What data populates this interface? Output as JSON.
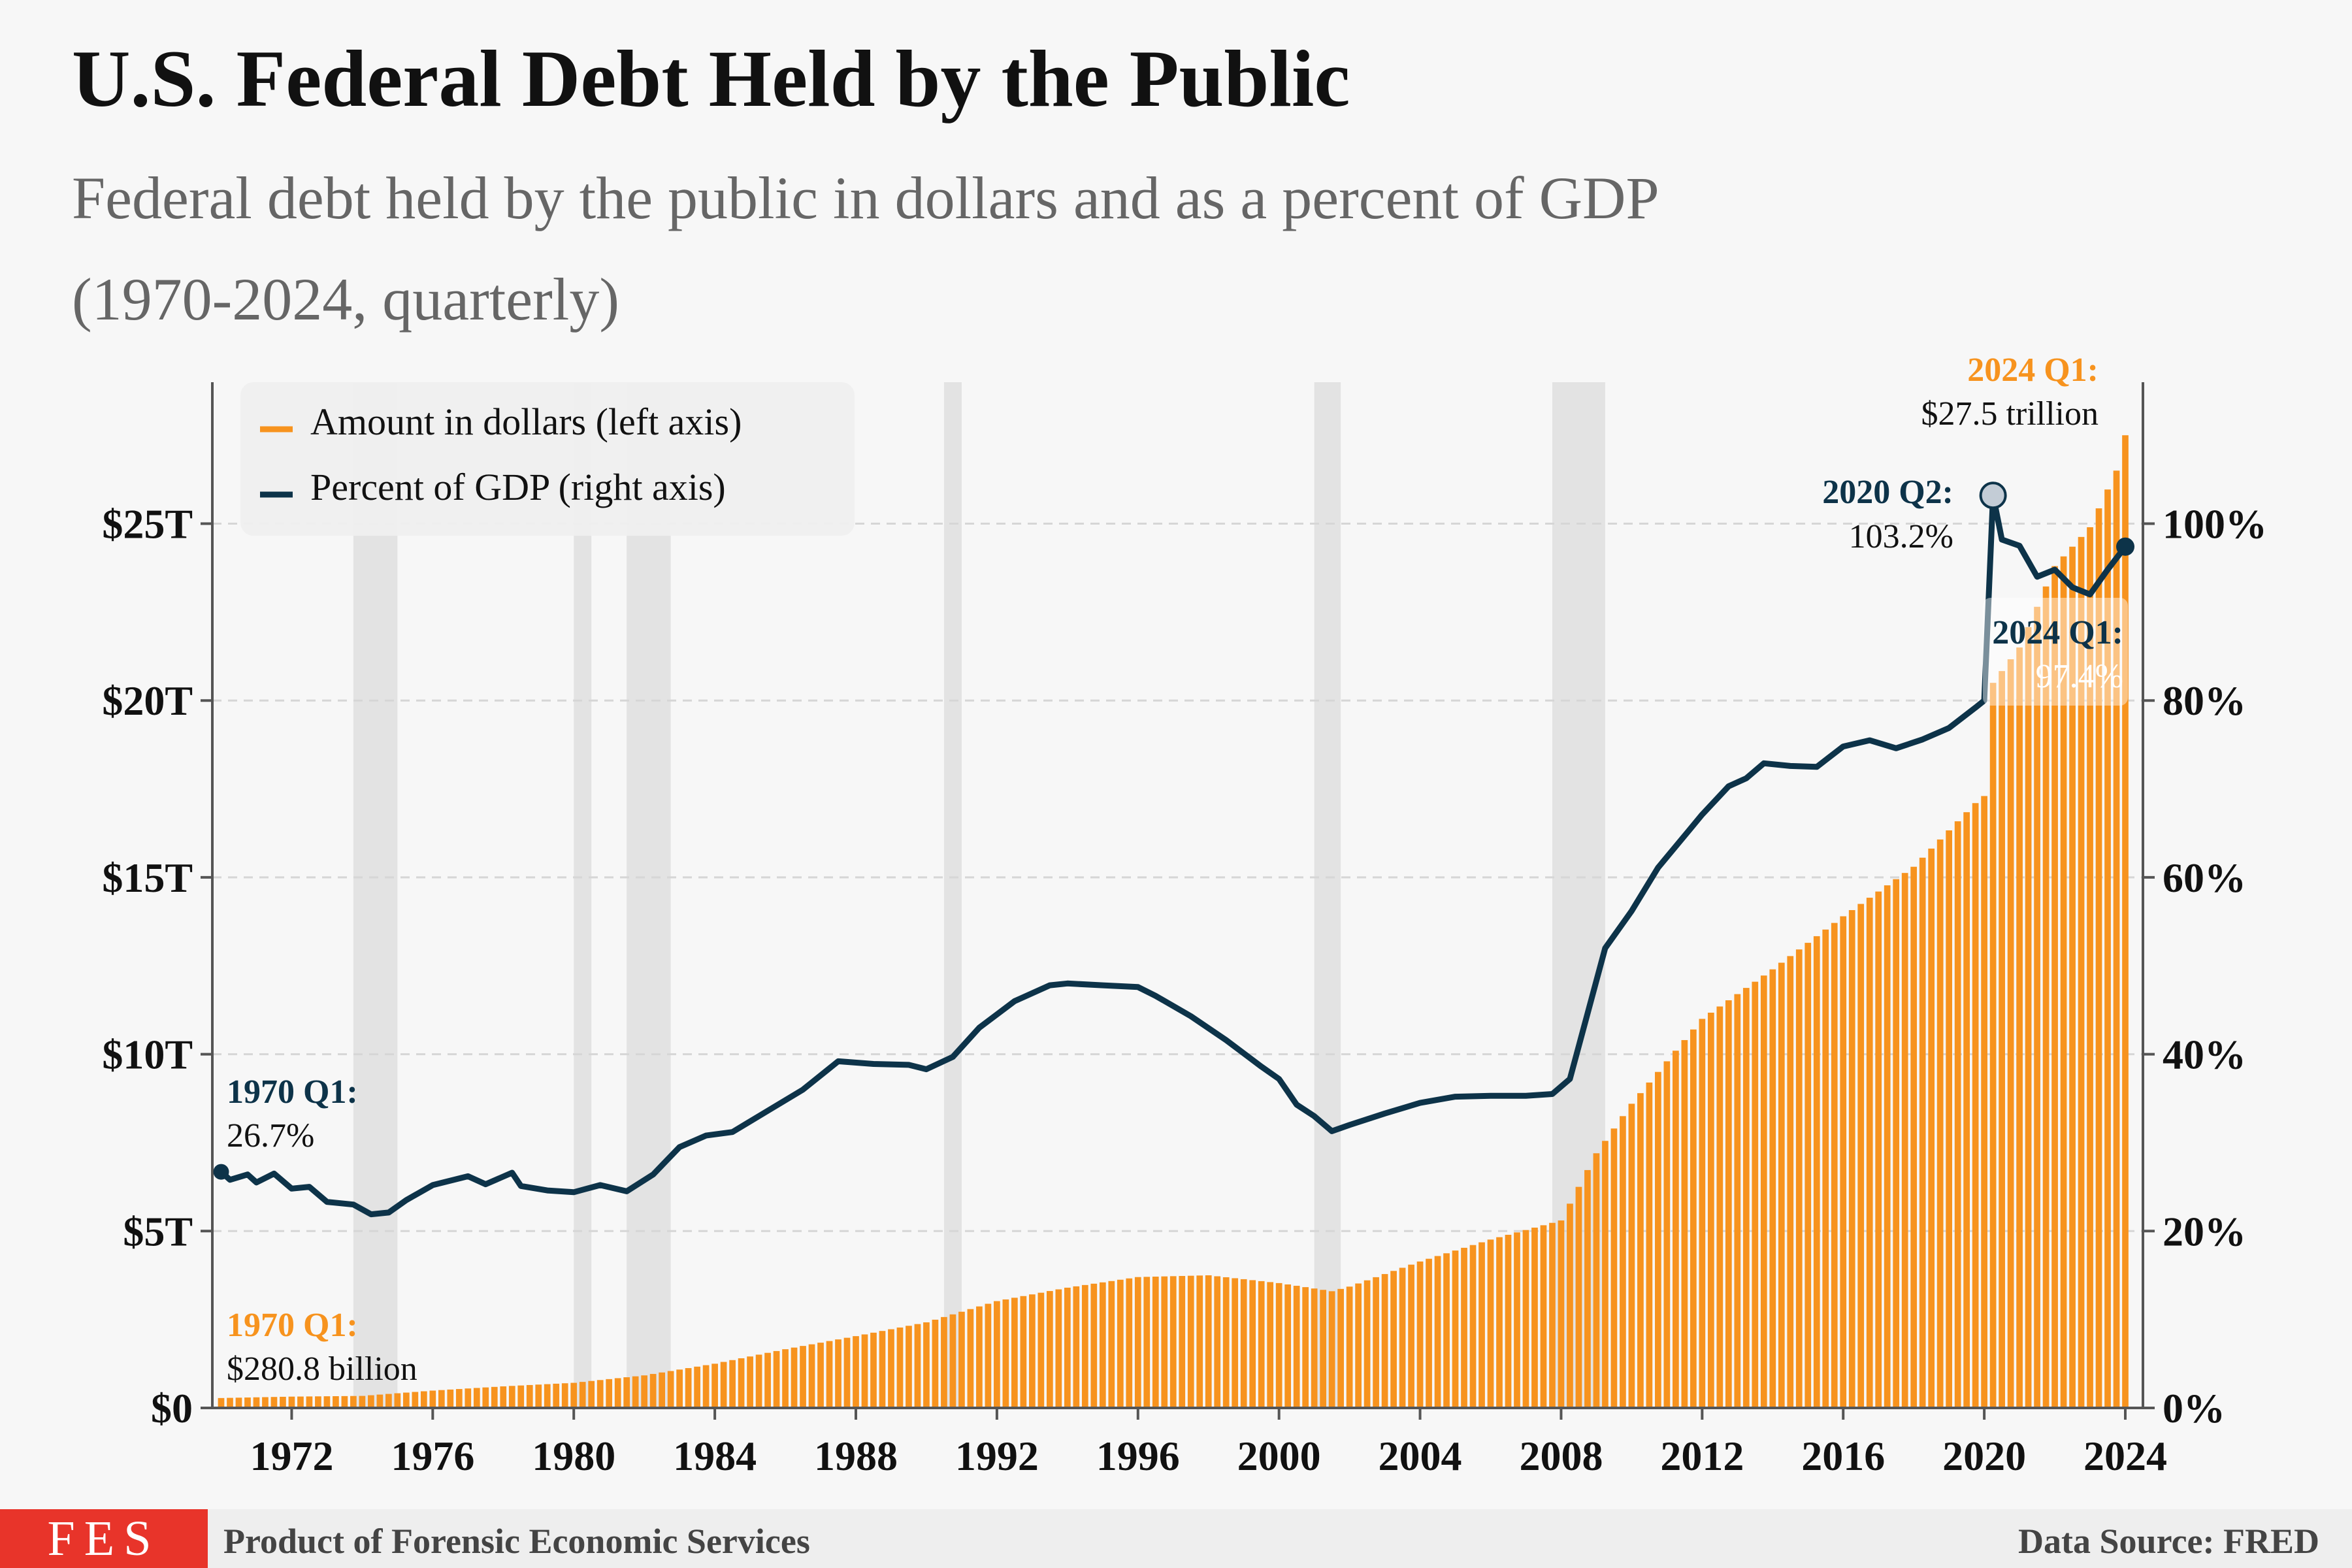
{
  "title": "U.S. Federal Debt Held by the Public",
  "subtitle_line1": "Federal debt held by the public in dollars and as a percent of GDP",
  "subtitle_line2": "(1970-2024, quarterly)",
  "footer": {
    "logo": "FES",
    "credit": "Product of Forensic Economic Services",
    "source": "Data Source: FRED"
  },
  "colors": {
    "bars": "#f7931e",
    "line": "#0d3349",
    "recession": "#e3e3e3",
    "logo_bg": "#e8342a"
  },
  "chart_data": {
    "type": "bar+line",
    "x_range": [
      1969.75,
      2024.5
    ],
    "x_ticks": [
      "1972",
      "1976",
      "1980",
      "1984",
      "1988",
      "1992",
      "1996",
      "2000",
      "2004",
      "2008",
      "2012",
      "2016",
      "2020",
      "2024"
    ],
    "left_axis": {
      "ticks": [
        "$0",
        "$5T",
        "$10T",
        "$15T",
        "$20T",
        "$25T"
      ],
      "tick_values": [
        0,
        5,
        10,
        15,
        20,
        25
      ],
      "range": [
        0,
        29
      ],
      "units": "trillions of dollars"
    },
    "right_axis": {
      "ticks": [
        "0%",
        "20%",
        "40%",
        "60%",
        "80%",
        "100%"
      ],
      "tick_values": [
        0,
        20,
        40,
        60,
        80,
        100
      ],
      "range": [
        0,
        116
      ]
    },
    "grid": "horizontal dashed",
    "recessions": [
      [
        1973.75,
        1975.0
      ],
      [
        1980.0,
        1980.5
      ],
      [
        1981.5,
        1982.75
      ],
      [
        1990.5,
        1991.0
      ],
      [
        2001.0,
        2001.75
      ],
      [
        2007.75,
        2009.25
      ]
    ],
    "legend": {
      "position": "top-left",
      "items": [
        "Amount in dollars (left axis)",
        "Percent of GDP (right axis)"
      ]
    },
    "series": [
      {
        "name": "Amount in dollars (left axis)",
        "kind": "bar",
        "axis": "left",
        "points": [
          [
            1970,
            0.28
          ],
          [
            1972,
            0.32
          ],
          [
            1974,
            0.34
          ],
          [
            1976,
            0.49
          ],
          [
            1978,
            0.61
          ],
          [
            1980,
            0.71
          ],
          [
            1982,
            0.92
          ],
          [
            1984,
            1.25
          ],
          [
            1986,
            1.66
          ],
          [
            1988,
            2.03
          ],
          [
            1990,
            2.42
          ],
          [
            1992,
            3.02
          ],
          [
            1994,
            3.4
          ],
          [
            1996,
            3.7
          ],
          [
            1998,
            3.75
          ],
          [
            2000,
            3.53
          ],
          [
            2001.5,
            3.3
          ],
          [
            2002,
            3.43
          ],
          [
            2004,
            4.14
          ],
          [
            2006,
            4.76
          ],
          [
            2008,
            5.3
          ],
          [
            2009,
            7.2
          ],
          [
            2010,
            8.6
          ],
          [
            2012,
            11.0
          ],
          [
            2014,
            12.4
          ],
          [
            2016,
            13.9
          ],
          [
            2018,
            15.3
          ],
          [
            2019.75,
            17.1
          ],
          [
            2020,
            17.3
          ],
          [
            2020.25,
            20.5
          ],
          [
            2021,
            21.5
          ],
          [
            2022,
            23.8
          ],
          [
            2023,
            24.9
          ],
          [
            2023.75,
            26.5
          ],
          [
            2024,
            27.5
          ]
        ]
      },
      {
        "name": "Percent of GDP (right axis)",
        "kind": "line",
        "axis": "right",
        "points": [
          [
            1970,
            26.7
          ],
          [
            1970.25,
            25.8
          ],
          [
            1970.75,
            26.4
          ],
          [
            1971,
            25.5
          ],
          [
            1971.5,
            26.5
          ],
          [
            1972,
            24.8
          ],
          [
            1972.5,
            25.0
          ],
          [
            1973,
            23.3
          ],
          [
            1973.75,
            23.0
          ],
          [
            1974.25,
            21.9
          ],
          [
            1974.75,
            22.1
          ],
          [
            1975.25,
            23.5
          ],
          [
            1976,
            25.2
          ],
          [
            1977,
            26.2
          ],
          [
            1977.5,
            25.3
          ],
          [
            1978.25,
            26.6
          ],
          [
            1978.5,
            25.1
          ],
          [
            1979.25,
            24.6
          ],
          [
            1980,
            24.4
          ],
          [
            1980.75,
            25.2
          ],
          [
            1981.5,
            24.5
          ],
          [
            1982.25,
            26.4
          ],
          [
            1983,
            29.5
          ],
          [
            1983.75,
            30.8
          ],
          [
            1984.5,
            31.2
          ],
          [
            1985.5,
            33.6
          ],
          [
            1986.5,
            36.0
          ],
          [
            1987.5,
            39.2
          ],
          [
            1988.5,
            38.9
          ],
          [
            1989.5,
            38.8
          ],
          [
            1990,
            38.3
          ],
          [
            1990.75,
            39.7
          ],
          [
            1991.5,
            43.0
          ],
          [
            1992.5,
            46.0
          ],
          [
            1993.5,
            47.8
          ],
          [
            1994,
            48.0
          ],
          [
            1995,
            47.8
          ],
          [
            1996,
            47.6
          ],
          [
            1996.5,
            46.6
          ],
          [
            1997.5,
            44.3
          ],
          [
            1998.5,
            41.6
          ],
          [
            1999.5,
            38.6
          ],
          [
            2000,
            37.2
          ],
          [
            2000.5,
            34.3
          ],
          [
            2001,
            33.0
          ],
          [
            2001.5,
            31.3
          ],
          [
            2002,
            32.0
          ],
          [
            2003,
            33.3
          ],
          [
            2004,
            34.5
          ],
          [
            2005,
            35.2
          ],
          [
            2006,
            35.3
          ],
          [
            2007,
            35.3
          ],
          [
            2007.75,
            35.5
          ],
          [
            2008.25,
            37.2
          ],
          [
            2008.75,
            44.6
          ],
          [
            2009.25,
            52.0
          ],
          [
            2010,
            56.2
          ],
          [
            2010.75,
            61.1
          ],
          [
            2011.5,
            64.7
          ],
          [
            2012,
            67.1
          ],
          [
            2012.75,
            70.3
          ],
          [
            2013.25,
            71.2
          ],
          [
            2013.75,
            72.9
          ],
          [
            2014.5,
            72.6
          ],
          [
            2015.25,
            72.5
          ],
          [
            2016,
            74.8
          ],
          [
            2016.75,
            75.5
          ],
          [
            2017.5,
            74.6
          ],
          [
            2018.25,
            75.6
          ],
          [
            2019,
            76.9
          ],
          [
            2019.75,
            79.2
          ],
          [
            2020,
            80.0
          ],
          [
            2020.25,
            103.2
          ],
          [
            2020.5,
            98.2
          ],
          [
            2021,
            97.5
          ],
          [
            2021.5,
            94.0
          ],
          [
            2022,
            94.8
          ],
          [
            2022.5,
            92.8
          ],
          [
            2023,
            92.0
          ],
          [
            2023.5,
            94.8
          ],
          [
            2024,
            97.4
          ]
        ]
      }
    ],
    "annotations": [
      {
        "series": "Percent of GDP (right axis)",
        "title": "1970 Q1:",
        "value": "26.7%"
      },
      {
        "series": "Amount in dollars (left axis)",
        "title": "1970 Q1:",
        "value": "$280.8 billion"
      },
      {
        "series": "Percent of GDP (right axis)",
        "title": "2020 Q2:",
        "value": "103.2%"
      },
      {
        "series": "Amount in dollars (left axis)",
        "title": "2024 Q1:",
        "value": "$27.5 trillion"
      },
      {
        "series": "Percent of GDP (right axis)",
        "title": "2024 Q1:",
        "value": "97.4%"
      }
    ]
  }
}
